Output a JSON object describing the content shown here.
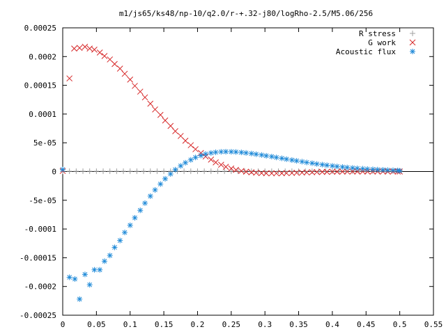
{
  "chart_data": {
    "type": "scatter",
    "title": "m1/js65/ks48/np-10/q2.0/r-+.32-j80/logRho-2.5/M5.06/256",
    "xlabel": "",
    "ylabel": "",
    "xlim": [
      0,
      0.55
    ],
    "ylim": [
      -0.00025,
      0.00025
    ],
    "x_ticks": [
      0,
      0.05,
      0.1,
      0.15,
      0.2,
      0.25,
      0.3,
      0.35,
      0.4,
      0.45,
      0.5,
      0.55
    ],
    "x_tick_labels": [
      "0",
      "0.05",
      "0.1",
      "0.15",
      "0.2",
      "0.25",
      "0.3",
      "0.35",
      "0.4",
      "0.45",
      "0.5",
      "0.55"
    ],
    "y_ticks": [
      0.00025,
      0.0002,
      0.00015,
      0.0001,
      5e-05,
      0,
      -5e-05,
      -0.0001,
      -0.00015,
      -0.0002,
      -0.00025
    ],
    "y_tick_labels": [
      "0.00025",
      "0.0002",
      "0.00015",
      "0.0001",
      "5e-05",
      "0",
      "-5e-05",
      "-0.0001",
      "-0.00015",
      "-0.0002",
      "-0.00025"
    ],
    "grid": false,
    "legend_position": "top-right",
    "series": [
      {
        "name": "R stress",
        "marker": "plus",
        "color": "#a0a0a0",
        "points": [
          [
            0.0,
            5e-07
          ],
          [
            0.01,
            5e-07
          ],
          [
            0.02,
            5e-07
          ],
          [
            0.03,
            5e-07
          ],
          [
            0.04,
            5e-07
          ],
          [
            0.05,
            5e-07
          ],
          [
            0.06,
            5e-07
          ],
          [
            0.07,
            5e-07
          ],
          [
            0.08,
            5e-07
          ],
          [
            0.09,
            5e-07
          ],
          [
            0.1,
            5e-07
          ],
          [
            0.11,
            5e-07
          ],
          [
            0.12,
            5e-07
          ],
          [
            0.13,
            5e-07
          ],
          [
            0.14,
            5e-07
          ],
          [
            0.15,
            5e-07
          ],
          [
            0.16,
            5e-07
          ],
          [
            0.17,
            5e-07
          ],
          [
            0.18,
            5e-07
          ],
          [
            0.19,
            5e-07
          ],
          [
            0.2,
            5e-07
          ],
          [
            0.21,
            5e-07
          ],
          [
            0.22,
            5e-07
          ],
          [
            0.23,
            5e-07
          ],
          [
            0.24,
            5e-07
          ],
          [
            0.25,
            5e-07
          ],
          [
            0.26,
            5e-07
          ],
          [
            0.27,
            5e-07
          ],
          [
            0.28,
            5e-07
          ],
          [
            0.29,
            5e-07
          ],
          [
            0.3,
            5e-07
          ],
          [
            0.31,
            5e-07
          ],
          [
            0.32,
            5e-07
          ],
          [
            0.33,
            5e-07
          ],
          [
            0.34,
            5e-07
          ],
          [
            0.35,
            5e-07
          ],
          [
            0.36,
            5e-07
          ],
          [
            0.37,
            5e-07
          ],
          [
            0.38,
            5e-07
          ],
          [
            0.39,
            5e-07
          ],
          [
            0.4,
            5e-07
          ],
          [
            0.41,
            5e-07
          ],
          [
            0.42,
            5e-07
          ],
          [
            0.43,
            5e-07
          ],
          [
            0.44,
            5e-07
          ],
          [
            0.45,
            5e-07
          ],
          [
            0.46,
            5e-07
          ],
          [
            0.47,
            5e-07
          ],
          [
            0.48,
            5e-07
          ],
          [
            0.49,
            5e-07
          ],
          [
            0.5,
            5e-07
          ]
        ]
      },
      {
        "name": "G work",
        "marker": "cross",
        "color": "#d62728",
        "points": [
          [
            0.0,
            1e-06
          ],
          [
            0.01,
            0.000162
          ],
          [
            0.017,
            0.000214
          ],
          [
            0.025,
            0.000215
          ],
          [
            0.033,
            0.000217
          ],
          [
            0.04,
            0.000214
          ],
          [
            0.047,
            0.000212
          ],
          [
            0.055,
            0.000207
          ],
          [
            0.062,
            0.000201
          ],
          [
            0.07,
            0.000195
          ],
          [
            0.077,
            0.000187
          ],
          [
            0.085,
            0.000179
          ],
          [
            0.092,
            0.00017
          ],
          [
            0.1,
            0.00016
          ],
          [
            0.107,
            0.000149
          ],
          [
            0.115,
            0.000139
          ],
          [
            0.122,
            0.000129
          ],
          [
            0.13,
            0.000118
          ],
          [
            0.137,
            0.000108
          ],
          [
            0.145,
            9.85e-05
          ],
          [
            0.152,
            8.88e-05
          ],
          [
            0.16,
            7.93e-05
          ],
          [
            0.167,
            7.02e-05
          ],
          [
            0.175,
            6.18e-05
          ],
          [
            0.182,
            5.36e-05
          ],
          [
            0.19,
            4.58e-05
          ],
          [
            0.197,
            3.88e-05
          ],
          [
            0.205,
            3.22e-05
          ],
          [
            0.212,
            2.62e-05
          ],
          [
            0.22,
            2.07e-05
          ],
          [
            0.227,
            1.59e-05
          ],
          [
            0.235,
            1.18e-05
          ],
          [
            0.242,
            8.2e-06
          ],
          [
            0.25,
            5.3e-06
          ],
          [
            0.257,
            2.9e-06
          ],
          [
            0.265,
            1e-06
          ],
          [
            0.272,
            -3e-07
          ],
          [
            0.28,
            -1.4e-06
          ],
          [
            0.287,
            -2.2e-06
          ],
          [
            0.295,
            -2.7e-06
          ],
          [
            0.302,
            -3e-06
          ],
          [
            0.31,
            -3.1e-06
          ],
          [
            0.317,
            -3.1e-06
          ],
          [
            0.325,
            -3e-06
          ],
          [
            0.332,
            -2.8e-06
          ],
          [
            0.34,
            -2.5e-06
          ],
          [
            0.347,
            -2.2e-06
          ],
          [
            0.355,
            -1.9e-06
          ],
          [
            0.362,
            -1.6e-06
          ],
          [
            0.37,
            -1.3e-06
          ],
          [
            0.377,
            -1e-06
          ],
          [
            0.385,
            -8e-07
          ],
          [
            0.392,
            -6e-07
          ],
          [
            0.4,
            -4e-07
          ],
          [
            0.407,
            -3e-07
          ],
          [
            0.415,
            -2e-07
          ],
          [
            0.422,
            -1e-07
          ],
          [
            0.43,
            0.0
          ],
          [
            0.437,
            0.0
          ],
          [
            0.445,
            0.0
          ],
          [
            0.452,
            0.0
          ],
          [
            0.46,
            0.0
          ],
          [
            0.467,
            0.0
          ],
          [
            0.475,
            0.0
          ],
          [
            0.482,
            0.0
          ],
          [
            0.49,
            0.0
          ],
          [
            0.497,
            0.0
          ],
          [
            0.5,
            0.0
          ]
        ]
      },
      {
        "name": "Acoustic flux",
        "marker": "star",
        "color": "#1f8ad8",
        "points": [
          [
            0.0,
            3.5e-06
          ],
          [
            0.01,
            -0.000184
          ],
          [
            0.018,
            -0.000187
          ],
          [
            0.025,
            -0.000222
          ],
          [
            0.033,
            -0.000179
          ],
          [
            0.04,
            -0.000197
          ],
          [
            0.047,
            -0.000171
          ],
          [
            0.055,
            -0.000171
          ],
          [
            0.062,
            -0.000156
          ],
          [
            0.07,
            -0.000146
          ],
          [
            0.077,
            -0.000132
          ],
          [
            0.085,
            -0.00012
          ],
          [
            0.092,
            -0.000106
          ],
          [
            0.1,
            -9.35e-05
          ],
          [
            0.107,
            -8.05e-05
          ],
          [
            0.115,
            -6.75e-05
          ],
          [
            0.122,
            -5.5e-05
          ],
          [
            0.13,
            -4.28e-05
          ],
          [
            0.137,
            -3.2e-05
          ],
          [
            0.145,
            -2.18e-05
          ],
          [
            0.152,
            -1.26e-05
          ],
          [
            0.16,
            -4.3e-06
          ],
          [
            0.167,
            3.2e-06
          ],
          [
            0.175,
            9.8e-06
          ],
          [
            0.182,
            1.53e-05
          ],
          [
            0.19,
            2.03e-05
          ],
          [
            0.197,
            2.45e-05
          ],
          [
            0.205,
            2.78e-05
          ],
          [
            0.212,
            3.05e-05
          ],
          [
            0.22,
            3.23e-05
          ],
          [
            0.227,
            3.35e-05
          ],
          [
            0.235,
            3.43e-05
          ],
          [
            0.242,
            3.45e-05
          ],
          [
            0.25,
            3.44e-05
          ],
          [
            0.257,
            3.4e-05
          ],
          [
            0.265,
            3.33e-05
          ],
          [
            0.272,
            3.24e-05
          ],
          [
            0.28,
            3.13e-05
          ],
          [
            0.287,
            3.01e-05
          ],
          [
            0.295,
            2.88e-05
          ],
          [
            0.302,
            2.74e-05
          ],
          [
            0.31,
            2.6e-05
          ],
          [
            0.317,
            2.45e-05
          ],
          [
            0.325,
            2.3e-05
          ],
          [
            0.332,
            2.15e-05
          ],
          [
            0.34,
            2e-05
          ],
          [
            0.347,
            1.86e-05
          ],
          [
            0.355,
            1.72e-05
          ],
          [
            0.362,
            1.58e-05
          ],
          [
            0.37,
            1.45e-05
          ],
          [
            0.377,
            1.32e-05
          ],
          [
            0.385,
            1.2e-05
          ],
          [
            0.392,
            1.09e-05
          ],
          [
            0.4,
            9.8e-06
          ],
          [
            0.407,
            8.8e-06
          ],
          [
            0.415,
            7.9e-06
          ],
          [
            0.422,
            7e-06
          ],
          [
            0.43,
            6.2e-06
          ],
          [
            0.437,
            5.5e-06
          ],
          [
            0.445,
            4.9e-06
          ],
          [
            0.452,
            4.3e-06
          ],
          [
            0.46,
            3.8e-06
          ],
          [
            0.467,
            3.3e-06
          ],
          [
            0.475,
            2.9e-06
          ],
          [
            0.482,
            2.5e-06
          ],
          [
            0.49,
            2.2e-06
          ],
          [
            0.497,
            1.9e-06
          ],
          [
            0.5,
            1.2e-06
          ]
        ]
      }
    ]
  }
}
